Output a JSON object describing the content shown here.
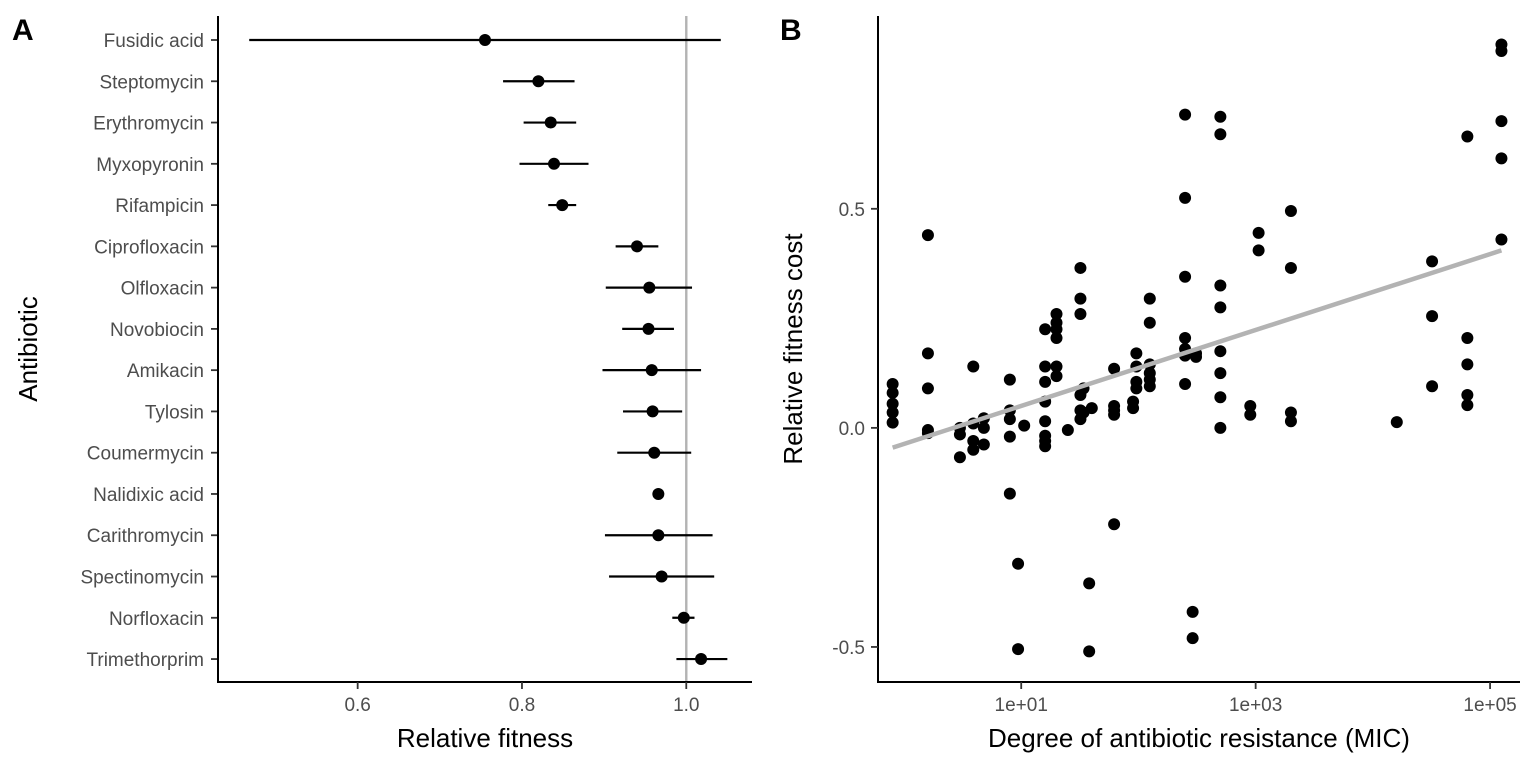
{
  "chart_data": [
    {
      "type": "forest",
      "panel_label": "A",
      "xlabel": "Relative fitness",
      "ylabel": "Antibiotic",
      "xlim": [
        0.43,
        1.08
      ],
      "xticks": [
        0.6,
        0.8,
        1.0
      ],
      "xtick_labels": [
        "0.6",
        "0.8",
        "1.0"
      ],
      "reference_line": 1.0,
      "reference_line_color": "#b3b3b3",
      "point_color": "#000000",
      "grid": false,
      "rows": [
        {
          "label": "Fusidic acid",
          "estimate": 0.755,
          "low": 0.468,
          "high": 1.042
        },
        {
          "label": "Steptomycin",
          "estimate": 0.82,
          "low": 0.777,
          "high": 0.864
        },
        {
          "label": "Erythromycin",
          "estimate": 0.835,
          "low": 0.802,
          "high": 0.866
        },
        {
          "label": "Myxopyronin",
          "estimate": 0.839,
          "low": 0.797,
          "high": 0.881
        },
        {
          "label": "Rifampicin",
          "estimate": 0.849,
          "low": 0.832,
          "high": 0.866
        },
        {
          "label": "Ciprofloxacin",
          "estimate": 0.94,
          "low": 0.914,
          "high": 0.966
        },
        {
          "label": "Olfloxacin",
          "estimate": 0.955,
          "low": 0.902,
          "high": 1.007
        },
        {
          "label": "Novobiocin",
          "estimate": 0.954,
          "low": 0.922,
          "high": 0.985
        },
        {
          "label": "Amikacin",
          "estimate": 0.958,
          "low": 0.898,
          "high": 1.018
        },
        {
          "label": "Tylosin",
          "estimate": 0.959,
          "low": 0.923,
          "high": 0.995
        },
        {
          "label": "Coumermycin",
          "estimate": 0.961,
          "low": 0.916,
          "high": 1.006
        },
        {
          "label": "Nalidixic acid",
          "estimate": 0.966,
          "low": 0.966,
          "high": 0.966
        },
        {
          "label": "Carithromycin",
          "estimate": 0.966,
          "low": 0.901,
          "high": 1.032
        },
        {
          "label": "Spectinomycin",
          "estimate": 0.97,
          "low": 0.906,
          "high": 1.034
        },
        {
          "label": "Norfloxacin",
          "estimate": 0.997,
          "low": 0.983,
          "high": 1.01
        },
        {
          "label": "Trimethorprim",
          "estimate": 1.018,
          "low": 0.988,
          "high": 1.05
        }
      ]
    },
    {
      "type": "scatter",
      "panel_label": "B",
      "xlabel": "Degree of antibiotic resistance (MIC)",
      "ylabel": "Relative fitness cost",
      "x_scale": "log10",
      "xlim": [
        0.6,
        180000
      ],
      "ylim": [
        -0.58,
        0.94
      ],
      "xticks": [
        10,
        1000,
        100000
      ],
      "xtick_labels": [
        "1e+01",
        "1e+03",
        "1e+05"
      ],
      "yticks": [
        -0.5,
        0.0,
        0.5
      ],
      "ytick_labels": [
        "-0.5",
        "0.0",
        "0.5"
      ],
      "point_color": "#000000",
      "trend_color": "#b3b3b3",
      "grid": false,
      "trend_line": {
        "x": [
          0.8,
          125000
        ],
        "y": [
          -0.045,
          0.405
        ]
      },
      "points": [
        [
          0.8,
          0.1
        ],
        [
          0.8,
          0.08
        ],
        [
          0.8,
          0.055
        ],
        [
          0.8,
          0.035
        ],
        [
          0.8,
          0.012
        ],
        [
          1.6,
          0.44
        ],
        [
          1.6,
          0.17
        ],
        [
          1.6,
          0.09
        ],
        [
          1.6,
          -0.005
        ],
        [
          1.6,
          -0.012
        ],
        [
          3,
          0.0
        ],
        [
          3,
          -0.015
        ],
        [
          3,
          -0.067
        ],
        [
          3.9,
          0.14
        ],
        [
          3.9,
          0.01
        ],
        [
          3.9,
          -0.03
        ],
        [
          3.9,
          -0.05
        ],
        [
          4.8,
          0.022
        ],
        [
          4.8,
          0.0
        ],
        [
          4.8,
          -0.038
        ],
        [
          8,
          0.11
        ],
        [
          8,
          0.04
        ],
        [
          8,
          0.02
        ],
        [
          8,
          -0.02
        ],
        [
          8,
          -0.15
        ],
        [
          9.4,
          -0.31
        ],
        [
          9.4,
          -0.505
        ],
        [
          10.6,
          0.005
        ],
        [
          16,
          0.225
        ],
        [
          16,
          0.14
        ],
        [
          16,
          0.105
        ],
        [
          16,
          0.06
        ],
        [
          16,
          0.015
        ],
        [
          16,
          -0.018
        ],
        [
          16,
          -0.03
        ],
        [
          16,
          -0.042
        ],
        [
          20,
          0.26
        ],
        [
          20,
          0.24
        ],
        [
          20,
          0.225
        ],
        [
          20,
          0.205
        ],
        [
          20,
          0.14
        ],
        [
          20,
          0.118
        ],
        [
          25,
          -0.005
        ],
        [
          32,
          0.365
        ],
        [
          32,
          0.295
        ],
        [
          32,
          0.26
        ],
        [
          32,
          0.075
        ],
        [
          32,
          0.04
        ],
        [
          32,
          0.02
        ],
        [
          34,
          0.09
        ],
        [
          34,
          0.035
        ],
        [
          38,
          -0.355
        ],
        [
          38,
          -0.51
        ],
        [
          40,
          0.045
        ],
        [
          62,
          0.135
        ],
        [
          62,
          0.05
        ],
        [
          62,
          0.04
        ],
        [
          62,
          0.03
        ],
        [
          62,
          -0.22
        ],
        [
          90,
          0.06
        ],
        [
          90,
          0.045
        ],
        [
          96,
          0.17
        ],
        [
          96,
          0.14
        ],
        [
          96,
          0.105
        ],
        [
          96,
          0.09
        ],
        [
          125,
          0.295
        ],
        [
          125,
          0.24
        ],
        [
          125,
          0.145
        ],
        [
          125,
          0.125
        ],
        [
          125,
          0.11
        ],
        [
          125,
          0.095
        ],
        [
          250,
          0.715
        ],
        [
          250,
          0.525
        ],
        [
          250,
          0.345
        ],
        [
          250,
          0.205
        ],
        [
          250,
          0.18
        ],
        [
          250,
          0.165
        ],
        [
          250,
          0.1
        ],
        [
          290,
          -0.42
        ],
        [
          290,
          -0.48
        ],
        [
          310,
          0.17
        ],
        [
          310,
          0.162
        ],
        [
          500,
          0.71
        ],
        [
          500,
          0.67
        ],
        [
          500,
          0.325
        ],
        [
          500,
          0.275
        ],
        [
          500,
          0.175
        ],
        [
          500,
          0.125
        ],
        [
          500,
          0.07
        ],
        [
          500,
          0.0
        ],
        [
          900,
          0.05
        ],
        [
          900,
          0.03
        ],
        [
          1060,
          0.445
        ],
        [
          1060,
          0.405
        ],
        [
          2000,
          0.495
        ],
        [
          2000,
          0.365
        ],
        [
          2000,
          0.035
        ],
        [
          2000,
          0.015
        ],
        [
          16000,
          0.013
        ],
        [
          32000,
          0.38
        ],
        [
          32000,
          0.255
        ],
        [
          32000,
          0.095
        ],
        [
          64000,
          0.665
        ],
        [
          64000,
          0.205
        ],
        [
          64000,
          0.145
        ],
        [
          64000,
          0.075
        ],
        [
          64000,
          0.052
        ],
        [
          125000,
          0.875
        ],
        [
          125000,
          0.86
        ],
        [
          125000,
          0.7
        ],
        [
          125000,
          0.615
        ],
        [
          125000,
          0.43
        ]
      ]
    }
  ]
}
